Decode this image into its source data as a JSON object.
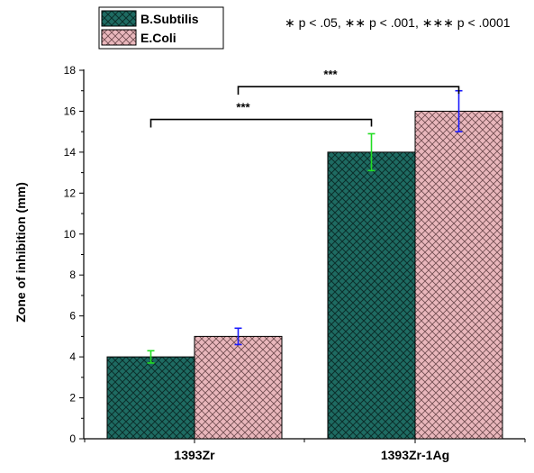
{
  "chart_data": {
    "type": "bar",
    "categories": [
      "1393Zr",
      "1393Zr-1Ag"
    ],
    "series": [
      {
        "name": "B.Subtilis",
        "values": [
          4,
          14
        ],
        "errors": [
          0.3,
          0.9
        ],
        "color": "#1e6b62",
        "error_color": "#22dd22"
      },
      {
        "name": "E.Coli",
        "values": [
          5,
          16
        ],
        "errors": [
          0.4,
          1.0
        ],
        "color": "#e9b7bc",
        "error_color": "#1a1aff"
      }
    ],
    "ylabel": "Zone of inhibition (mm)",
    "xlabel": "",
    "ylim": [
      0,
      18
    ],
    "yticks": [
      "0",
      "2",
      "4",
      "6",
      "8",
      "10",
      "12",
      "14",
      "16",
      "18"
    ],
    "significance_legend": "∗ p < .05,  ∗∗  p < .001,  ∗∗∗ p < .0001",
    "significance_brackets": [
      {
        "from": [
          0,
          0
        ],
        "to": [
          1,
          0
        ],
        "label": "***",
        "level": 15.6
      },
      {
        "from": [
          0,
          1
        ],
        "to": [
          1,
          1
        ],
        "label": "***",
        "level": 17.2
      }
    ],
    "legend_position": "top-left",
    "grid": false
  }
}
